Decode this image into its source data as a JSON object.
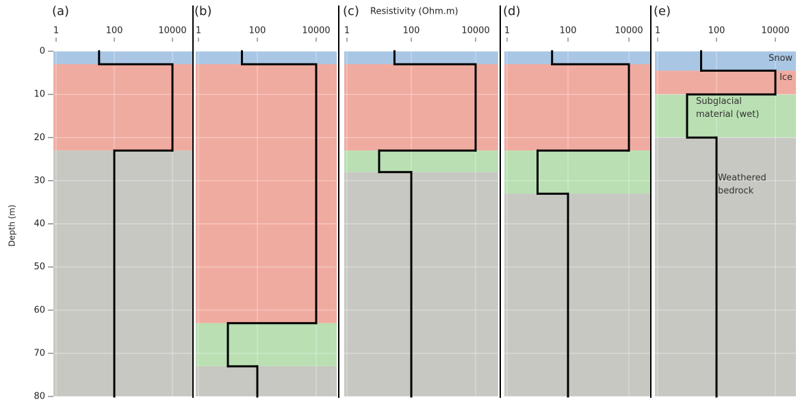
{
  "chart_data": [
    {
      "type": "step",
      "label": "(a)",
      "ylabel": "Depth (m)",
      "xlim": [
        1,
        50000
      ],
      "xticks": [
        1,
        100,
        10000
      ],
      "log_x": true,
      "ylim": [
        0,
        80
      ],
      "yticks": [
        0,
        10,
        20,
        30,
        40,
        50,
        60,
        70,
        80
      ],
      "grid": true,
      "line_color": "#000000",
      "layers": [
        {
          "top": 0,
          "bottom": 3,
          "resistivity": 30,
          "color": "#a9c6e4"
        },
        {
          "top": 3,
          "bottom": 23,
          "resistivity": 10000,
          "color": "#f0aba0"
        },
        {
          "top": 23,
          "bottom": 80,
          "resistivity": 100,
          "color": "#c7c8c2"
        }
      ]
    },
    {
      "type": "step",
      "label": "(b)",
      "xlim": [
        1,
        50000
      ],
      "xticks": [
        1,
        100,
        10000
      ],
      "log_x": true,
      "ylim": [
        0,
        80
      ],
      "grid": true,
      "line_color": "#000000",
      "layers": [
        {
          "top": 0,
          "bottom": 3,
          "resistivity": 30,
          "color": "#a9c6e4"
        },
        {
          "top": 3,
          "bottom": 63,
          "resistivity": 10000,
          "color": "#f0aba0"
        },
        {
          "top": 63,
          "bottom": 73,
          "resistivity": 10,
          "color": "#b9dfb2"
        },
        {
          "top": 73,
          "bottom": 80,
          "resistivity": 100,
          "color": "#c7c8c2"
        }
      ]
    },
    {
      "type": "step",
      "label": "(c)",
      "title": "Resistivity (Ohm.m)",
      "xlim": [
        1,
        50000
      ],
      "xticks": [
        1,
        100,
        10000
      ],
      "log_x": true,
      "ylim": [
        0,
        80
      ],
      "grid": true,
      "line_color": "#000000",
      "layers": [
        {
          "top": 0,
          "bottom": 3,
          "resistivity": 30,
          "color": "#a9c6e4"
        },
        {
          "top": 3,
          "bottom": 23,
          "resistivity": 10000,
          "color": "#f0aba0"
        },
        {
          "top": 23,
          "bottom": 28,
          "resistivity": 10,
          "color": "#b9dfb2"
        },
        {
          "top": 28,
          "bottom": 80,
          "resistivity": 100,
          "color": "#c7c8c2"
        }
      ]
    },
    {
      "type": "step",
      "label": "(d)",
      "xlim": [
        1,
        50000
      ],
      "xticks": [
        1,
        100,
        10000
      ],
      "log_x": true,
      "ylim": [
        0,
        80
      ],
      "grid": true,
      "line_color": "#000000",
      "layers": [
        {
          "top": 0,
          "bottom": 3,
          "resistivity": 30,
          "color": "#a9c6e4"
        },
        {
          "top": 3,
          "bottom": 23,
          "resistivity": 10000,
          "color": "#f0aba0"
        },
        {
          "top": 23,
          "bottom": 33,
          "resistivity": 10,
          "color": "#b9dfb2"
        },
        {
          "top": 33,
          "bottom": 80,
          "resistivity": 100,
          "color": "#c7c8c2"
        }
      ]
    },
    {
      "type": "step",
      "label": "(e)",
      "xlim": [
        1,
        50000
      ],
      "xticks": [
        1,
        100,
        10000
      ],
      "log_x": true,
      "ylim": [
        0,
        80
      ],
      "grid": true,
      "line_color": "#000000",
      "layers": [
        {
          "top": 0,
          "bottom": 4.5,
          "resistivity": 30,
          "color": "#a9c6e4",
          "name": "Snow"
        },
        {
          "top": 4.5,
          "bottom": 10,
          "resistivity": 10000,
          "color": "#f0aba0",
          "name": "Ice"
        },
        {
          "top": 10,
          "bottom": 20,
          "resistivity": 10,
          "color": "#b9dfb2",
          "name": "Subglacial material (wet)"
        },
        {
          "top": 20,
          "bottom": 80,
          "resistivity": 100,
          "color": "#c7c8c2",
          "name": "Weathered bedrock"
        }
      ]
    }
  ]
}
